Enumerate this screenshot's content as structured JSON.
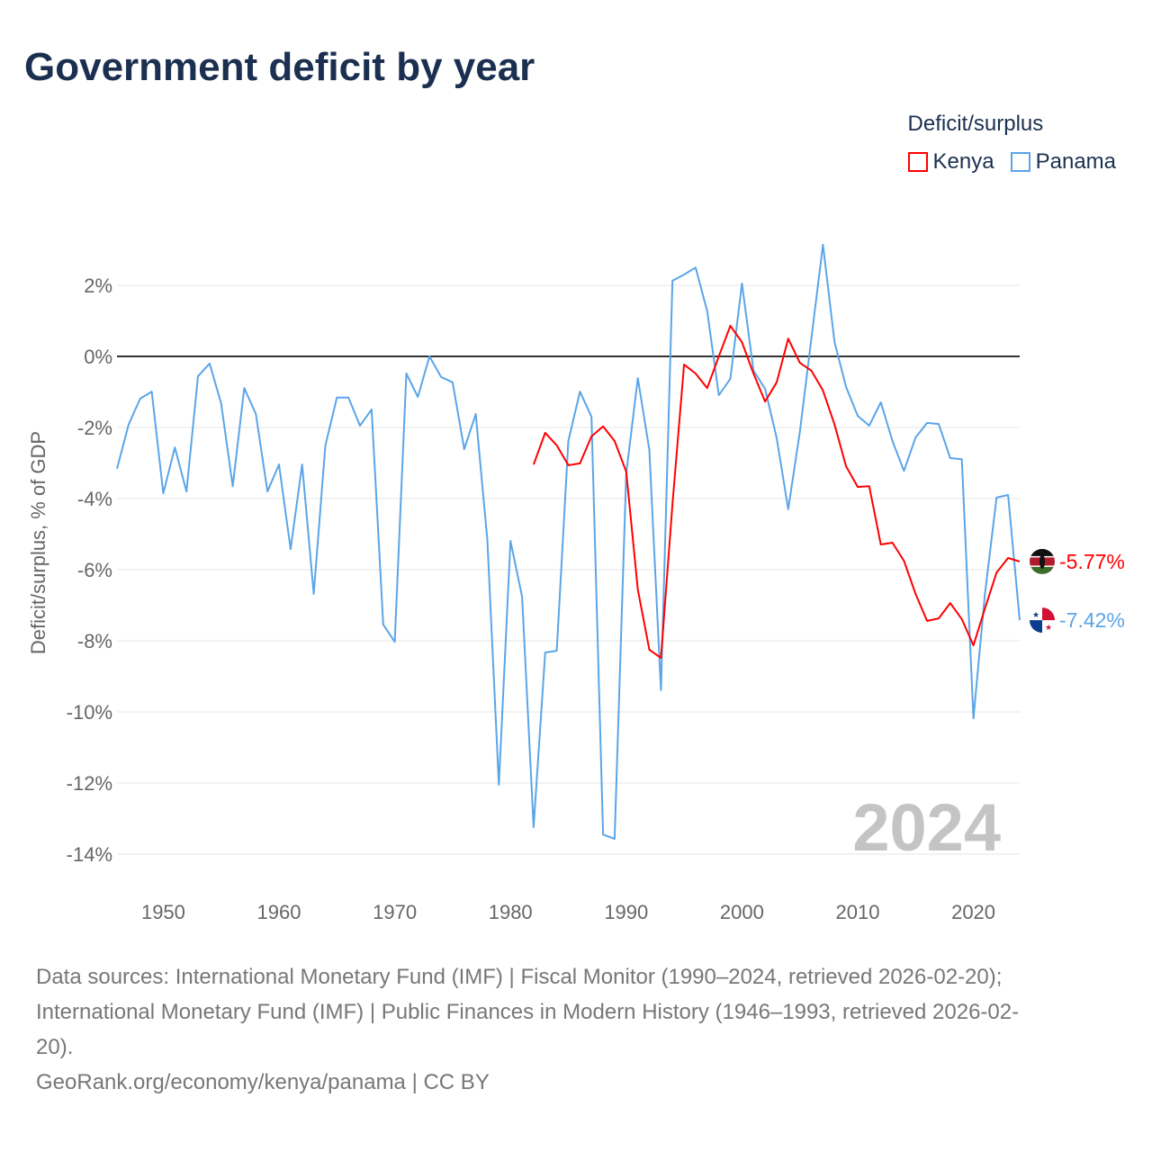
{
  "title": "Government deficit by year",
  "legend": {
    "title": "Deficit/surplus",
    "items": [
      {
        "label": "Kenya",
        "color": "#ff0000"
      },
      {
        "label": "Panama",
        "color": "#5aa5e8"
      }
    ]
  },
  "year_watermark": "2024",
  "source_lines": [
    "Data sources: International Monetary Fund (IMF) | Fiscal Monitor (1990–2024, retrieved 2026-02-20);",
    "International Monetary Fund (IMF) | Public Finances in Modern History (1946–1993, retrieved 2026-02-",
    "20).",
    "GeoRank.org/economy/kenya/panama | CC BY"
  ],
  "chart_data": {
    "type": "line",
    "title": "Government deficit by year",
    "xlabel": "",
    "ylabel": "Deficit/surplus, % of GDP",
    "xlim": [
      1946,
      2024
    ],
    "ylim": [
      -15,
      3.5
    ],
    "x_ticks": [
      1950,
      1960,
      1970,
      1980,
      1990,
      2000,
      2010,
      2020
    ],
    "y_ticks": [
      2,
      0,
      -2,
      -4,
      -6,
      -8,
      -10,
      -12,
      -14
    ],
    "y_tick_labels": [
      "2%",
      "0%",
      "-2%",
      "-4%",
      "-6%",
      "-8%",
      "-10%",
      "-12%",
      "-14%"
    ],
    "grid": true,
    "legend_position": "top-right",
    "series": [
      {
        "name": "Kenya",
        "color": "#ff0000",
        "start_year": 1982,
        "end_label": "-5.77%",
        "values": [
          -3.04,
          -2.15,
          -2.5,
          -3.06,
          -3.01,
          -2.25,
          -1.97,
          -2.38,
          -3.24,
          -6.56,
          -8.25,
          -8.48,
          -4.15,
          -0.23,
          -0.48,
          -0.89,
          0,
          0.86,
          0.4,
          -0.48,
          -1.27,
          -0.73,
          0.5,
          -0.18,
          -0.4,
          -0.96,
          -1.92,
          -3.09,
          -3.67,
          -3.65,
          -5.29,
          -5.24,
          -5.75,
          -6.68,
          -7.44,
          -7.37,
          -6.94,
          -7.39,
          -8.13,
          -7.09,
          -6.08,
          -5.67,
          -5.77
        ]
      },
      {
        "name": "Panama",
        "color": "#5aa5e8",
        "start_year": 1946,
        "end_label": "-7.42%",
        "values": [
          -3.16,
          -1.92,
          -1.19,
          -0.99,
          -3.85,
          -2.56,
          -3.8,
          -0.56,
          -0.2,
          -1.32,
          -3.65,
          -0.89,
          -1.62,
          -3.8,
          -3.04,
          -5.42,
          -3.04,
          -6.68,
          -2.51,
          -1.16,
          -1.16,
          -1.95,
          -1.49,
          -7.54,
          -8.03,
          -0.48,
          -1.14,
          0,
          -0.58,
          -0.73,
          -2.61,
          -1.62,
          -5.16,
          -12.05,
          -5.19,
          -6.76,
          -13.24,
          -8.33,
          -8.28,
          -2.38,
          -0.99,
          -1.7,
          -13.45,
          -13.57,
          -3.3,
          -0.61,
          -2.63,
          -9.39,
          2.13,
          2.3,
          2.5,
          1.27,
          -1.09,
          -0.63,
          2.05,
          -0.4,
          -0.91,
          -2.3,
          -4.3,
          -2.13,
          0.5,
          3.14,
          0.4,
          -0.86,
          -1.67,
          -1.95,
          -1.29,
          -2.38,
          -3.22,
          -2.28,
          -1.87,
          -1.9,
          -2.86,
          -2.89,
          -10.18,
          -6.68,
          -3.97,
          -3.9,
          -7.42
        ]
      }
    ]
  }
}
